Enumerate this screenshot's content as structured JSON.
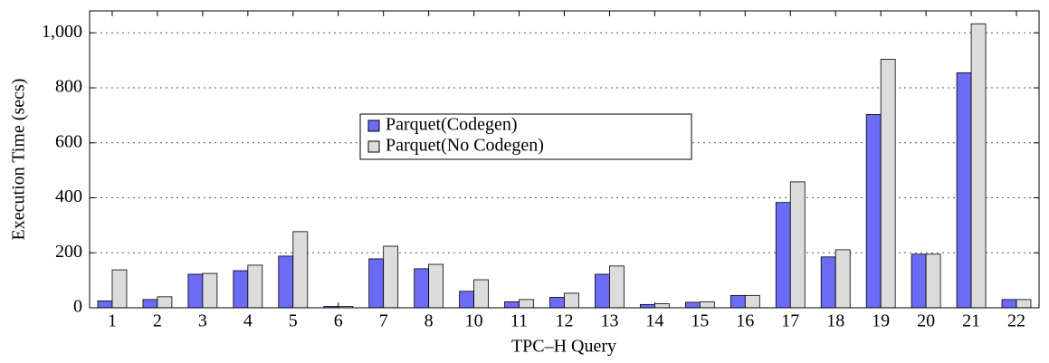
{
  "chart_data": {
    "type": "bar",
    "x_label": "TPC–H Query",
    "y_label": "Execution Time (secs)",
    "categories": [
      "1",
      "2",
      "3",
      "4",
      "5",
      "6",
      "7",
      "8",
      "10",
      "11",
      "12",
      "13",
      "14",
      "15",
      "16",
      "17",
      "18",
      "19",
      "20",
      "21",
      "22"
    ],
    "series": [
      {
        "name": "Parquet(Codegen)",
        "color": "#6b6bf5",
        "values": [
          25,
          30,
          122,
          135,
          188,
          5,
          178,
          142,
          60,
          22,
          38,
          122,
          12,
          20,
          45,
          383,
          185,
          703,
          195,
          855,
          30
        ]
      },
      {
        "name": "Parquet(No Codegen)",
        "color": "#dcdcdc",
        "values": [
          138,
          40,
          125,
          155,
          277,
          5,
          224,
          158,
          102,
          30,
          53,
          152,
          15,
          22,
          45,
          458,
          211,
          904,
          195,
          1033,
          30
        ]
      }
    ],
    "ylim": [
      0,
      1080
    ],
    "yticks": [
      0,
      200,
      400,
      600,
      800,
      {
        "value": 1000,
        "label": "1,000"
      }
    ],
    "grid": true,
    "legend": "upper-center-left"
  }
}
